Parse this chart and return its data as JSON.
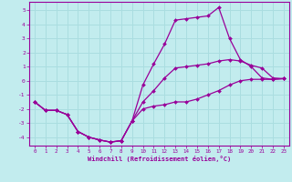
{
  "title": "",
  "xlabel": "Windchill (Refroidissement éolien,°C)",
  "ylabel": "",
  "background_color": "#c2ecee",
  "line_color": "#990099",
  "grid_color": "#aadde0",
  "xlim": [
    -0.5,
    23.5
  ],
  "ylim": [
    -4.6,
    5.6
  ],
  "yticks": [
    -4,
    -3,
    -2,
    -1,
    0,
    1,
    2,
    3,
    4,
    5
  ],
  "xticks": [
    0,
    1,
    2,
    3,
    4,
    5,
    6,
    7,
    8,
    9,
    10,
    11,
    12,
    13,
    14,
    15,
    16,
    17,
    18,
    19,
    20,
    21,
    22,
    23
  ],
  "lines": [
    {
      "x": [
        0,
        1,
        2,
        3,
        4,
        5,
        6,
        7,
        8,
        9,
        10,
        11,
        12,
        13,
        14,
        15,
        16,
        17,
        18,
        19,
        20,
        21,
        22,
        23
      ],
      "y": [
        -1.5,
        -2.1,
        -2.1,
        -2.4,
        -3.6,
        -4.0,
        -4.2,
        -4.35,
        -4.25,
        -2.85,
        -2.0,
        -1.8,
        -1.7,
        -1.5,
        -1.5,
        -1.3,
        -1.0,
        -0.7,
        -0.3,
        0.0,
        0.1,
        0.1,
        0.1,
        0.15
      ]
    },
    {
      "x": [
        0,
        1,
        2,
        3,
        4,
        5,
        6,
        7,
        8,
        9,
        10,
        11,
        12,
        13,
        14,
        15,
        16,
        17,
        18,
        19,
        20,
        21,
        22,
        23
      ],
      "y": [
        -1.5,
        -2.1,
        -2.1,
        -2.4,
        -3.6,
        -4.0,
        -4.2,
        -4.35,
        -4.25,
        -2.85,
        -0.3,
        1.2,
        2.6,
        4.3,
        4.4,
        4.5,
        4.6,
        5.2,
        3.0,
        1.5,
        1.0,
        0.2,
        0.1,
        0.15
      ]
    },
    {
      "x": [
        0,
        1,
        2,
        3,
        4,
        5,
        6,
        7,
        8,
        9,
        10,
        11,
        12,
        13,
        14,
        15,
        16,
        17,
        18,
        19,
        20,
        21,
        22,
        23
      ],
      "y": [
        -1.5,
        -2.1,
        -2.1,
        -2.4,
        -3.6,
        -4.0,
        -4.2,
        -4.35,
        -4.25,
        -2.85,
        -1.5,
        -0.7,
        0.2,
        0.9,
        1.0,
        1.1,
        1.2,
        1.4,
        1.5,
        1.4,
        1.1,
        0.9,
        0.2,
        0.15
      ]
    }
  ]
}
